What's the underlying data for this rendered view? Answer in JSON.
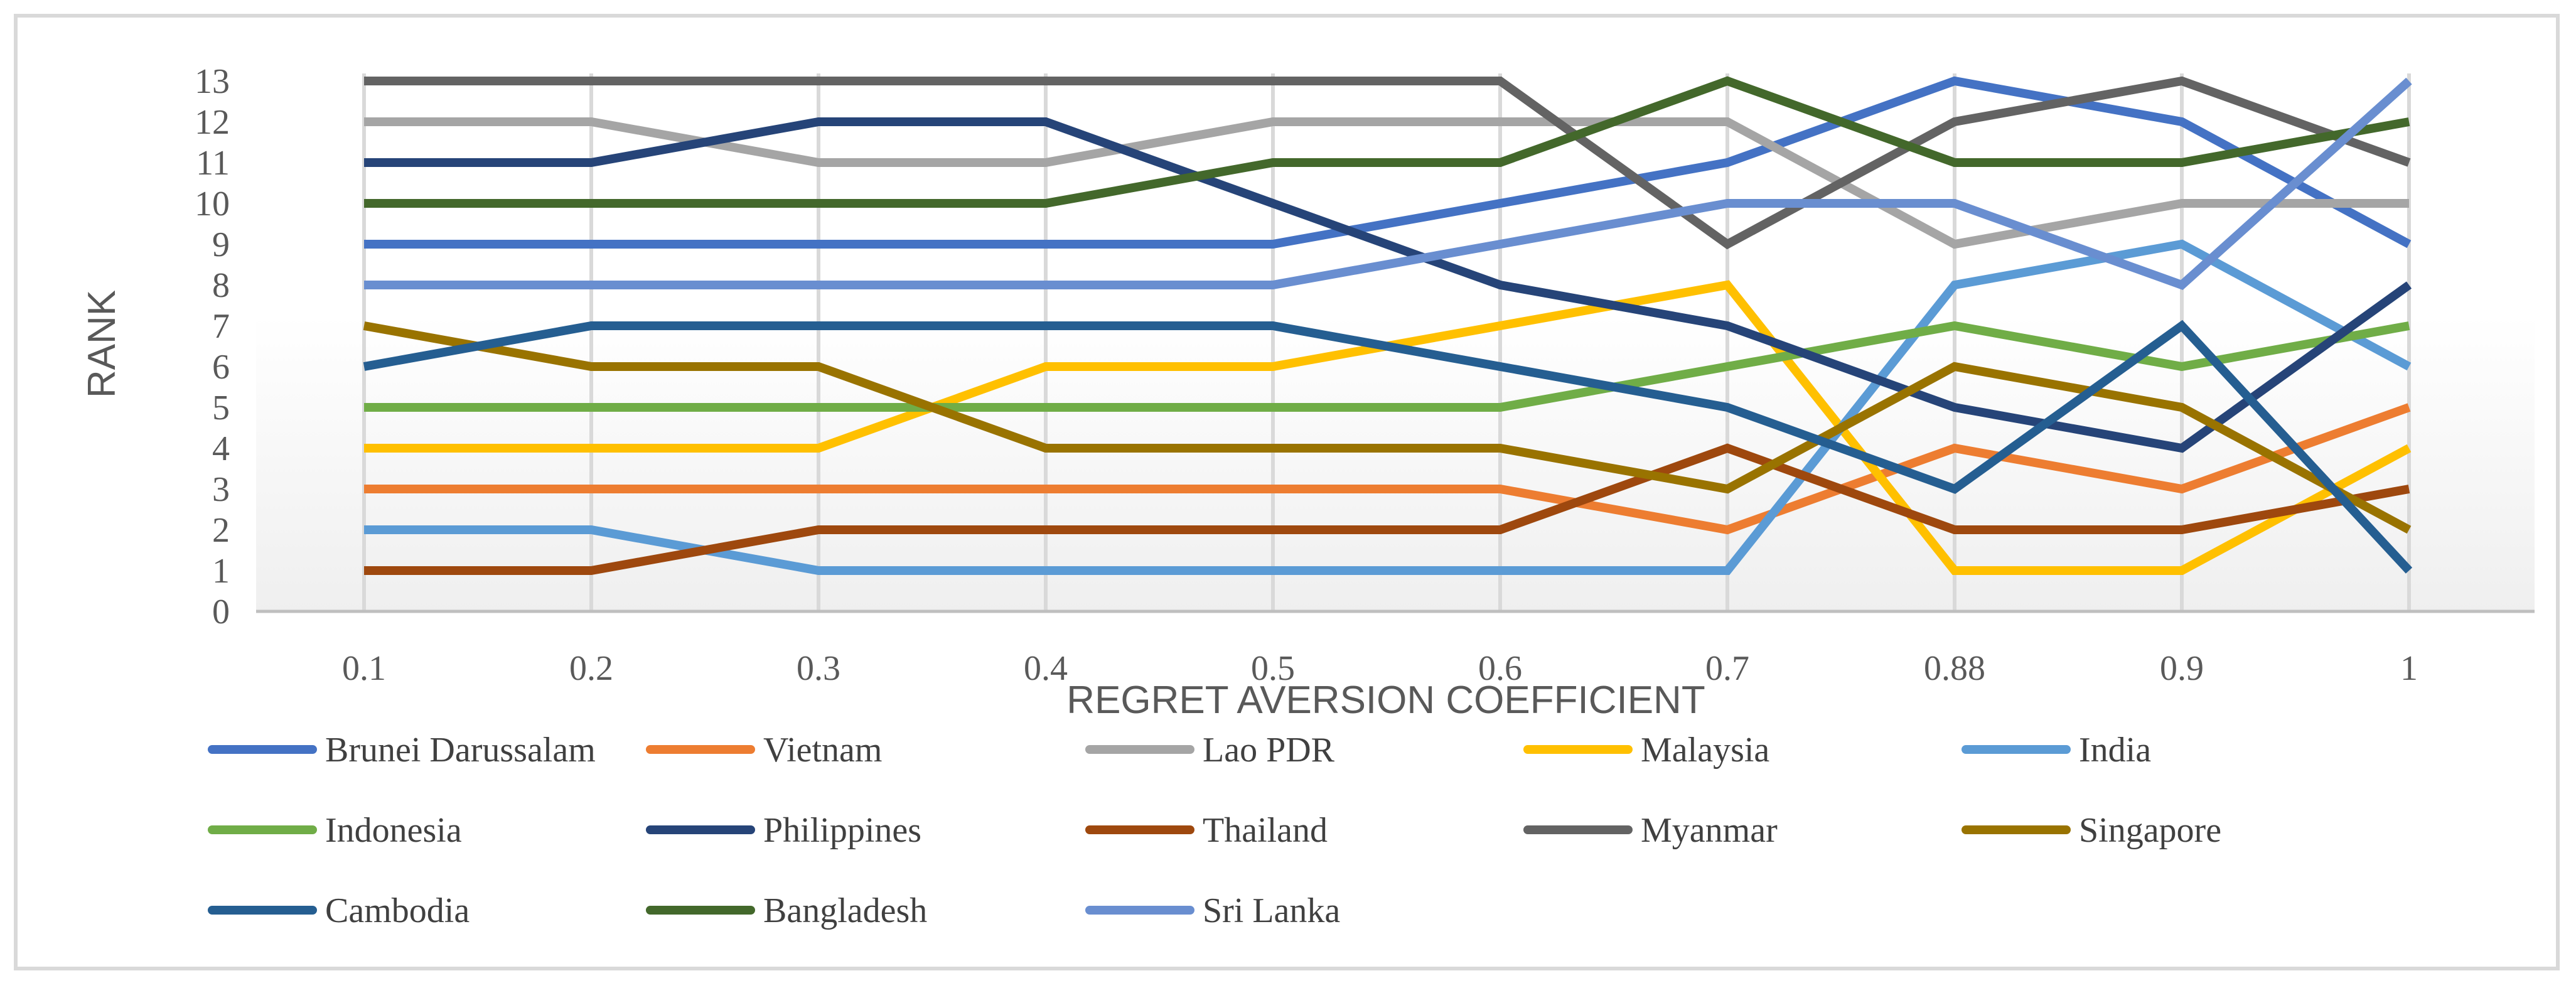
{
  "chart_data": {
    "type": "line",
    "title": "",
    "xlabel": "REGRET AVERSION COEFFICIENT",
    "ylabel": "RANK",
    "categories": [
      "0.1",
      "0.2",
      "0.3",
      "0.4",
      "0.5",
      "0.6",
      "0.7",
      "0.88",
      "0.9",
      "1"
    ],
    "ylim": [
      0,
      13
    ],
    "yticks": [
      "0",
      "1",
      "2",
      "3",
      "4",
      "5",
      "6",
      "7",
      "8",
      "9",
      "10",
      "11",
      "12",
      "13"
    ],
    "grid": "vertical",
    "legend_position": "bottom",
    "series": [
      {
        "name": "Brunei Darussalam",
        "color": "#4472C4",
        "values": [
          9,
          9,
          9,
          9,
          9,
          10,
          11,
          13,
          12,
          9
        ]
      },
      {
        "name": "Vietnam",
        "color": "#ED7D31",
        "values": [
          3,
          3,
          3,
          3,
          3,
          3,
          2,
          4,
          3,
          5
        ]
      },
      {
        "name": "Lao PDR",
        "color": "#A5A5A5",
        "values": [
          12,
          12,
          11,
          11,
          12,
          12,
          12,
          9,
          10,
          10
        ]
      },
      {
        "name": "Malaysia",
        "color": "#FFC000",
        "values": [
          4,
          4,
          4,
          6,
          6,
          7,
          8,
          1,
          1,
          4
        ]
      },
      {
        "name": "India",
        "color": "#5B9BD5",
        "values": [
          2,
          2,
          1,
          1,
          1,
          1,
          1,
          8,
          9,
          6
        ]
      },
      {
        "name": "Indonesia",
        "color": "#70AD47",
        "values": [
          5,
          5,
          5,
          5,
          5,
          5,
          6,
          7,
          6,
          7
        ]
      },
      {
        "name": "Philippines",
        "color": "#264478",
        "values": [
          11,
          11,
          12,
          12,
          10,
          8,
          7,
          5,
          4,
          8
        ]
      },
      {
        "name": "Thailand",
        "color": "#9E480E",
        "values": [
          1,
          1,
          2,
          2,
          2,
          2,
          4,
          2,
          2,
          3
        ]
      },
      {
        "name": "Myanmar",
        "color": "#636363",
        "values": [
          13,
          13,
          13,
          13,
          13,
          13,
          9,
          12,
          13,
          11
        ]
      },
      {
        "name": "Singapore",
        "color": "#997300",
        "values": [
          7,
          6,
          6,
          4,
          4,
          4,
          3,
          6,
          5,
          2
        ]
      },
      {
        "name": "Cambodia",
        "color": "#255E91",
        "values": [
          6,
          7,
          7,
          7,
          7,
          6,
          5,
          3,
          7,
          1
        ]
      },
      {
        "name": "Bangladesh",
        "color": "#43682B",
        "values": [
          10,
          10,
          10,
          10,
          11,
          11,
          13,
          11,
          11,
          12
        ]
      },
      {
        "name": "Sri Lanka",
        "color": "#698ED0",
        "values": [
          8,
          8,
          8,
          8,
          8,
          9,
          10,
          10,
          8,
          13
        ]
      }
    ]
  }
}
